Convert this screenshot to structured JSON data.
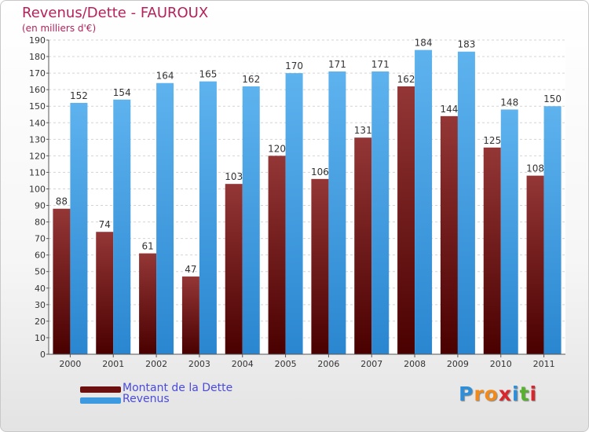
{
  "chart_data": {
    "type": "bar",
    "title": "Revenus/Dette - FAUROUX",
    "subtitle": "(en milliers d'€)",
    "categories": [
      "2000",
      "2001",
      "2002",
      "2003",
      "2004",
      "2005",
      "2006",
      "2007",
      "2008",
      "2009",
      "2010",
      "2011"
    ],
    "series": [
      {
        "name": "Montant de la Dette",
        "color": "#7a1414",
        "values": [
          88,
          74,
          61,
          47,
          103,
          120,
          106,
          131,
          162,
          144,
          125,
          108
        ]
      },
      {
        "name": "Revenus",
        "color": "#3d9ae0",
        "values": [
          152,
          154,
          164,
          165,
          162,
          170,
          171,
          171,
          184,
          183,
          148,
          150
        ]
      }
    ],
    "ylim": [
      0,
      190
    ],
    "yticks": [
      0,
      10,
      20,
      30,
      40,
      50,
      60,
      70,
      80,
      90,
      100,
      110,
      120,
      130,
      140,
      150,
      160,
      170,
      180,
      190
    ],
    "grid": true,
    "legend": "bottom-left"
  },
  "legend": {
    "items": [
      {
        "label": "Montant de la Dette",
        "color": "#6b0f0f"
      },
      {
        "label": "Revenus",
        "color": "#3d9ae0"
      }
    ]
  },
  "logo": {
    "letters": [
      "P",
      "r",
      "o",
      "x",
      "i",
      "t",
      "i"
    ],
    "colors": [
      "#2e8fd8",
      "#f08a1c",
      "#f08a1c",
      "#d8262c",
      "#2e8fd8",
      "#58b030",
      "#d8262c"
    ]
  }
}
